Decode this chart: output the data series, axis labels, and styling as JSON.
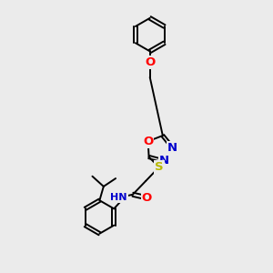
{
  "background_color": "#ebebeb",
  "bond_color": "#000000",
  "atom_colors": {
    "O": "#ff0000",
    "N": "#0000cd",
    "S": "#b8b800",
    "C": "#000000"
  },
  "font_size": 8.5,
  "lw": 1.4
}
